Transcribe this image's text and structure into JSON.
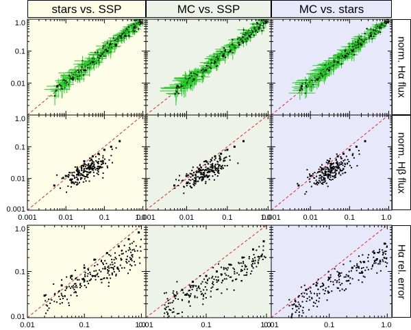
{
  "figure": {
    "columns": [
      "stars vs. SSP",
      "MC vs. SSP",
      "MC vs. stars"
    ],
    "rows": [
      "norm. Hα flux",
      "norm. Hβ flux",
      "Hα rel. error"
    ],
    "colors": {
      "panel_bg": [
        "#fdfde8",
        "#eef3ea",
        "#e8e8fb"
      ],
      "points": "#000000",
      "errorbars": "#22cc22",
      "one_to_one": "#dd2222"
    },
    "row_tick_labels": [
      {
        "y": [
          "0.01",
          "0.1",
          "1.0"
        ],
        "x": []
      },
      {
        "y": [
          "0.001",
          "0.01",
          "0.1",
          "1.0"
        ],
        "x": [
          "0.001",
          "0.01",
          "0.1",
          "1.0"
        ]
      },
      {
        "y": [
          "0.01",
          "0.1",
          "1.0"
        ],
        "x": [
          "0.01",
          "0.1",
          "1.0"
        ]
      }
    ]
  },
  "chart_data": [
    {
      "type": "scatter",
      "row": "norm. Hα flux",
      "column": "stars vs. SSP",
      "log_x": true,
      "log_y": true,
      "xlim": [
        0.001,
        1.2
      ],
      "ylim": [
        0.001,
        1.0
      ],
      "error_bars": true,
      "one_to_one_line": true,
      "x": [
        0.006,
        0.015,
        0.03,
        0.05,
        0.08,
        0.12,
        0.2,
        0.35,
        0.6,
        0.9
      ],
      "y": [
        0.008,
        0.013,
        0.025,
        0.045,
        0.07,
        0.1,
        0.16,
        0.3,
        0.55,
        0.8
      ]
    },
    {
      "type": "scatter",
      "row": "norm. Hα flux",
      "column": "MC vs. SSP",
      "log_x": true,
      "log_y": true,
      "xlim": [
        0.001,
        1.2
      ],
      "ylim": [
        0.001,
        1.0
      ],
      "error_bars": true,
      "one_to_one_line": true,
      "x": [
        0.006,
        0.015,
        0.03,
        0.05,
        0.08,
        0.12,
        0.2,
        0.35,
        0.6,
        0.9
      ],
      "y": [
        0.008,
        0.013,
        0.025,
        0.045,
        0.07,
        0.1,
        0.16,
        0.3,
        0.55,
        0.8
      ]
    },
    {
      "type": "scatter",
      "row": "norm. Hα flux",
      "column": "MC vs. stars",
      "log_x": true,
      "log_y": true,
      "xlim": [
        0.001,
        1.2
      ],
      "ylim": [
        0.001,
        1.0
      ],
      "error_bars": true,
      "one_to_one_line": true,
      "x": [
        0.006,
        0.015,
        0.03,
        0.05,
        0.08,
        0.12,
        0.2,
        0.35,
        0.6,
        0.9
      ],
      "y": [
        0.008,
        0.013,
        0.025,
        0.045,
        0.07,
        0.1,
        0.16,
        0.3,
        0.55,
        0.8
      ]
    },
    {
      "type": "scatter",
      "row": "norm. Hβ flux",
      "column": "stars vs. SSP",
      "log_x": true,
      "log_y": true,
      "xlim": [
        0.001,
        1.2
      ],
      "ylim": [
        0.001,
        1.0
      ],
      "one_to_one_line": true,
      "x": [
        0.005,
        0.01,
        0.02,
        0.03,
        0.05,
        0.07,
        0.1,
        0.15,
        0.25
      ],
      "y": [
        0.006,
        0.012,
        0.02,
        0.035,
        0.05,
        0.06,
        0.08,
        0.1,
        0.15
      ]
    },
    {
      "type": "scatter",
      "row": "norm. Hβ flux",
      "column": "MC vs. SSP",
      "log_x": true,
      "log_y": true,
      "xlim": [
        0.001,
        1.2
      ],
      "ylim": [
        0.001,
        1.0
      ],
      "one_to_one_line": true,
      "x": [
        0.005,
        0.01,
        0.02,
        0.03,
        0.05,
        0.07,
        0.1,
        0.15,
        0.25
      ],
      "y": [
        0.006,
        0.012,
        0.02,
        0.035,
        0.05,
        0.06,
        0.08,
        0.1,
        0.15
      ]
    },
    {
      "type": "scatter",
      "row": "norm. Hβ flux",
      "column": "MC vs. stars",
      "log_x": true,
      "log_y": true,
      "xlim": [
        0.001,
        1.2
      ],
      "ylim": [
        0.001,
        1.0
      ],
      "one_to_one_line": true,
      "x": [
        0.005,
        0.01,
        0.02,
        0.03,
        0.05,
        0.07,
        0.1,
        0.15,
        0.25
      ],
      "y": [
        0.006,
        0.012,
        0.02,
        0.035,
        0.05,
        0.06,
        0.08,
        0.1,
        0.15
      ]
    },
    {
      "type": "scatter",
      "row": "Hα rel. error",
      "column": "stars vs. SSP",
      "log_x": true,
      "log_y": true,
      "xlim": [
        0.01,
        1.2
      ],
      "ylim": [
        0.01,
        1.0
      ],
      "one_to_one_line": true,
      "x": [
        0.02,
        0.04,
        0.06,
        0.1,
        0.15,
        0.25,
        0.4,
        0.6,
        0.9
      ],
      "y": [
        0.03,
        0.05,
        0.08,
        0.12,
        0.18,
        0.25,
        0.35,
        0.5,
        0.7
      ]
    },
    {
      "type": "scatter",
      "row": "Hα rel. error",
      "column": "MC vs. SSP",
      "log_x": true,
      "log_y": true,
      "xlim": [
        0.01,
        1.2
      ],
      "ylim": [
        0.01,
        1.0
      ],
      "one_to_one_line": true,
      "x": [
        0.04,
        0.06,
        0.1,
        0.15,
        0.25,
        0.4,
        0.6,
        0.9
      ],
      "y": [
        0.04,
        0.06,
        0.08,
        0.1,
        0.14,
        0.2,
        0.3,
        0.45
      ]
    },
    {
      "type": "scatter",
      "row": "Hα rel. error",
      "column": "MC vs. stars",
      "log_x": true,
      "log_y": true,
      "xlim": [
        0.01,
        1.2
      ],
      "ylim": [
        0.01,
        1.0
      ],
      "one_to_one_line": true,
      "x": [
        0.04,
        0.06,
        0.1,
        0.15,
        0.25,
        0.4,
        0.6,
        0.9
      ],
      "y": [
        0.04,
        0.05,
        0.07,
        0.09,
        0.12,
        0.16,
        0.25,
        0.4
      ]
    }
  ]
}
